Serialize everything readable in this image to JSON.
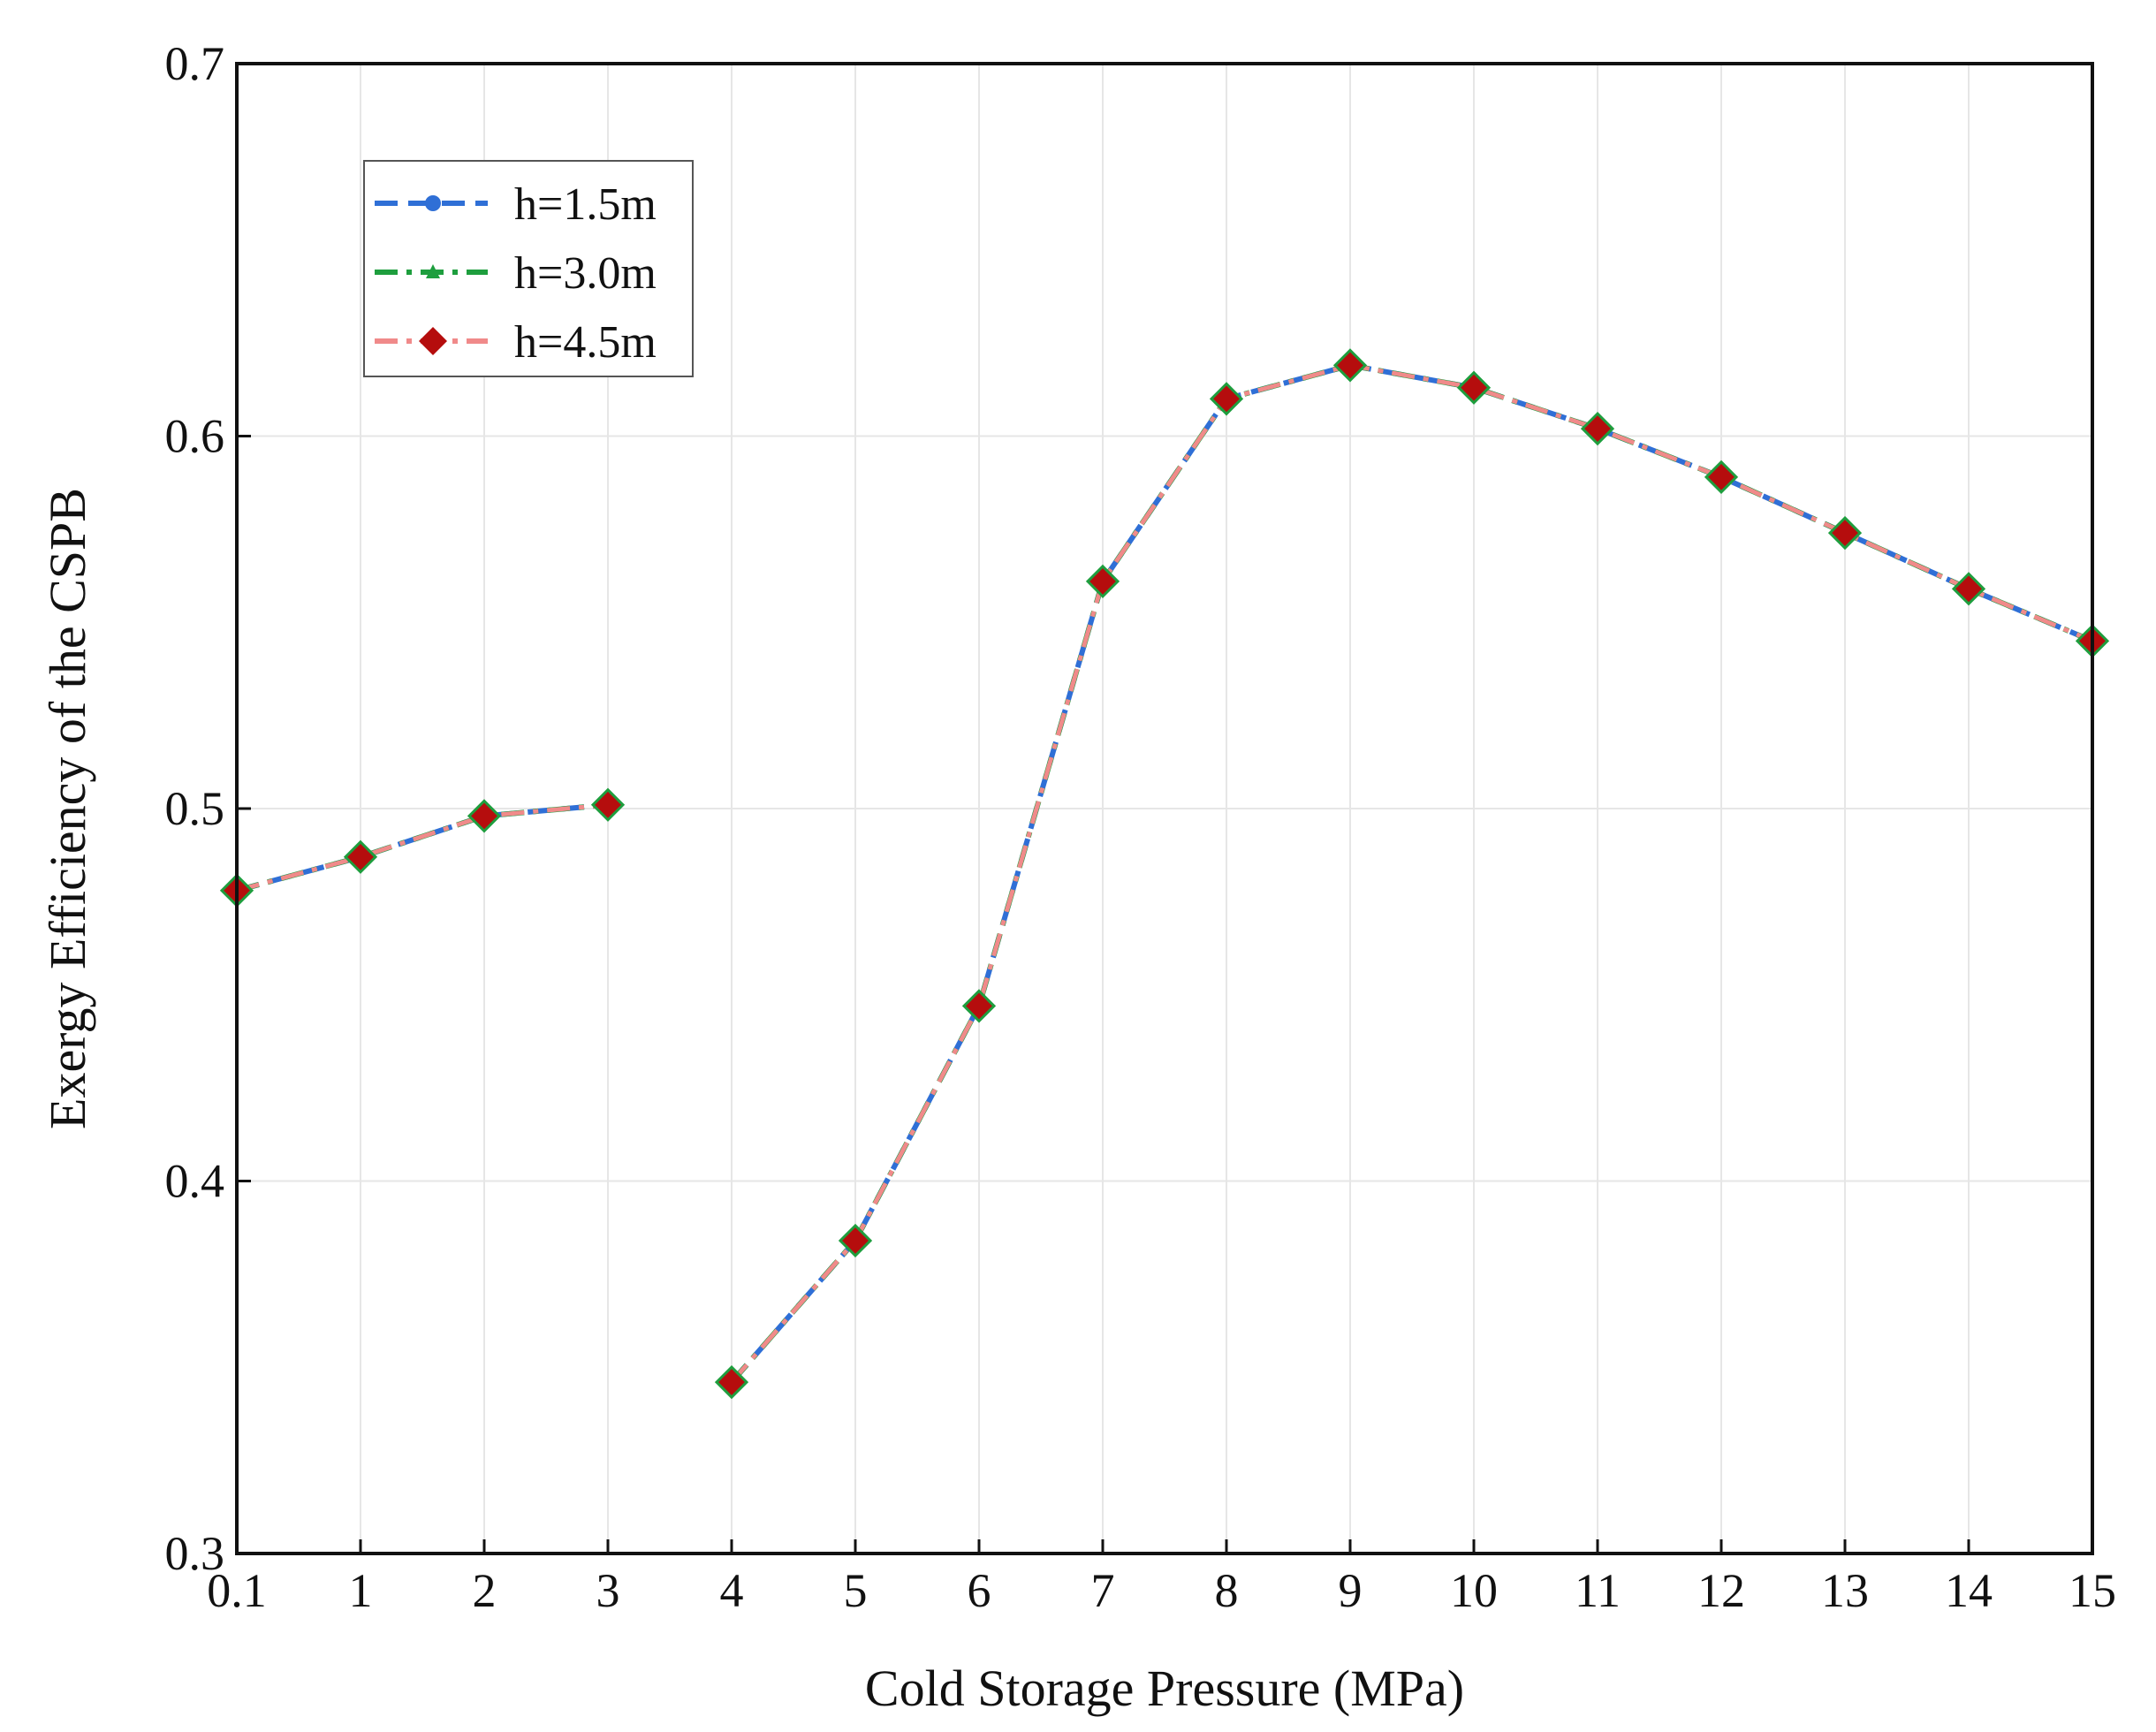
{
  "chart_data": {
    "type": "line",
    "title": "",
    "xlabel": "Cold Storage Pressure (MPa)",
    "ylabel": "Exergy Efficiency of the CSPB",
    "ylim": [
      0.3,
      0.7
    ],
    "yticks": [
      "0.3",
      "0.4",
      "0.5",
      "0.6",
      "0.7"
    ],
    "x_tick_labels": [
      "0.1",
      "1",
      "2",
      "3",
      "4",
      "5",
      "6",
      "7",
      "8",
      "9",
      "10",
      "11",
      "12",
      "13",
      "14",
      "15"
    ],
    "x": [
      0.1,
      1,
      2,
      3,
      4,
      5,
      6,
      7,
      8,
      9,
      10,
      11,
      12,
      13,
      14,
      15
    ],
    "segments": [
      [
        0,
        3
      ],
      [
        4,
        15
      ]
    ],
    "grid": true,
    "legend_position": "top-left",
    "series": [
      {
        "name": "h=1.5m",
        "color": "#2f6fd6",
        "dash": "dashed",
        "marker": "circle",
        "values": [
          0.478,
          0.487,
          0.498,
          0.501,
          0.346,
          0.384,
          0.447,
          0.561,
          0.61,
          0.619,
          0.613,
          0.602,
          0.589,
          0.574,
          0.559,
          0.545
        ]
      },
      {
        "name": "h=3.0m",
        "color": "#1e9e3e",
        "dash": "dashdot",
        "marker": "triangle",
        "values": [
          0.478,
          0.487,
          0.498,
          0.501,
          0.346,
          0.384,
          0.447,
          0.561,
          0.61,
          0.619,
          0.613,
          0.602,
          0.589,
          0.574,
          0.559,
          0.545
        ]
      },
      {
        "name": "h=4.5m",
        "color": "#f08a8a",
        "marker_color": "#b50d0d",
        "dash": "dashdot",
        "marker": "diamond",
        "values": [
          0.478,
          0.487,
          0.498,
          0.501,
          0.346,
          0.384,
          0.447,
          0.561,
          0.61,
          0.619,
          0.613,
          0.602,
          0.589,
          0.574,
          0.559,
          0.545
        ]
      }
    ]
  }
}
